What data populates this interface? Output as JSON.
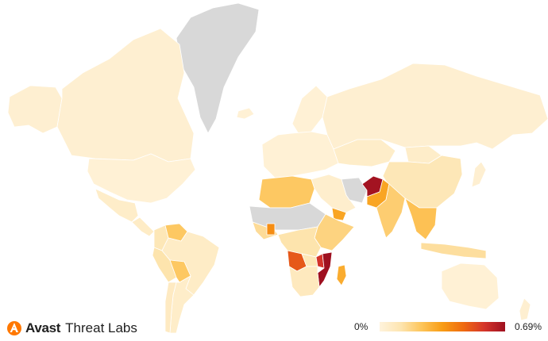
{
  "brand": {
    "name": "Avast",
    "subtitle": "Threat Labs",
    "logo_icon": "avast-logo-icon",
    "logo_color": "#ff7800"
  },
  "legend": {
    "min_label": "0%",
    "max_label": "0.69%",
    "colors": [
      "#fff3dc",
      "#fde5b1",
      "#fdc55a",
      "#f89c14",
      "#ef6b10",
      "#d5352a",
      "#9e1020"
    ]
  },
  "map": {
    "no_data_color": "#d8d8d8",
    "regions": [
      {
        "name": "greenland",
        "value": null
      },
      {
        "name": "canada",
        "value": 0.03
      },
      {
        "name": "alaska",
        "value": 0.03
      },
      {
        "name": "usa",
        "value": 0.02
      },
      {
        "name": "mexico",
        "value": 0.05
      },
      {
        "name": "central-america",
        "value": 0.06
      },
      {
        "name": "colombia",
        "value": 0.1
      },
      {
        "name": "venezuela",
        "value": 0.22
      },
      {
        "name": "peru",
        "value": 0.12
      },
      {
        "name": "brazil",
        "value": 0.06
      },
      {
        "name": "bolivia",
        "value": 0.22
      },
      {
        "name": "argentina",
        "value": 0.05
      },
      {
        "name": "chile",
        "value": 0.07
      },
      {
        "name": "iceland",
        "value": 0.02
      },
      {
        "name": "europe",
        "value": 0.02
      },
      {
        "name": "scandinavia",
        "value": 0.02
      },
      {
        "name": "russia",
        "value": 0.03
      },
      {
        "name": "kazakhstan",
        "value": 0.05
      },
      {
        "name": "mongolia",
        "value": 0.05
      },
      {
        "name": "china",
        "value": 0.1
      },
      {
        "name": "middle-east",
        "value": 0.04
      },
      {
        "name": "iran",
        "value": null
      },
      {
        "name": "afghanistan",
        "value": 0.68
      },
      {
        "name": "pakistan",
        "value": 0.32
      },
      {
        "name": "india",
        "value": 0.2
      },
      {
        "name": "southeast-asia",
        "value": 0.24
      },
      {
        "name": "indonesia",
        "value": 0.14
      },
      {
        "name": "japan",
        "value": 0.03
      },
      {
        "name": "australia",
        "value": 0.02
      },
      {
        "name": "new-zealand",
        "value": 0.03
      },
      {
        "name": "north-africa",
        "value": 0.22
      },
      {
        "name": "sahel",
        "value": null
      },
      {
        "name": "west-africa",
        "value": 0.15
      },
      {
        "name": "ghana",
        "value": 0.38
      },
      {
        "name": "east-africa",
        "value": 0.18
      },
      {
        "name": "congo",
        "value": 0.12
      },
      {
        "name": "angola",
        "value": 0.5
      },
      {
        "name": "zambia",
        "value": 0.1
      },
      {
        "name": "malawi",
        "value": 0.58
      },
      {
        "name": "mozambique",
        "value": 0.69
      },
      {
        "name": "southern-africa",
        "value": 0.08
      },
      {
        "name": "madagascar",
        "value": 0.3
      },
      {
        "name": "yemen",
        "value": 0.32
      }
    ]
  }
}
